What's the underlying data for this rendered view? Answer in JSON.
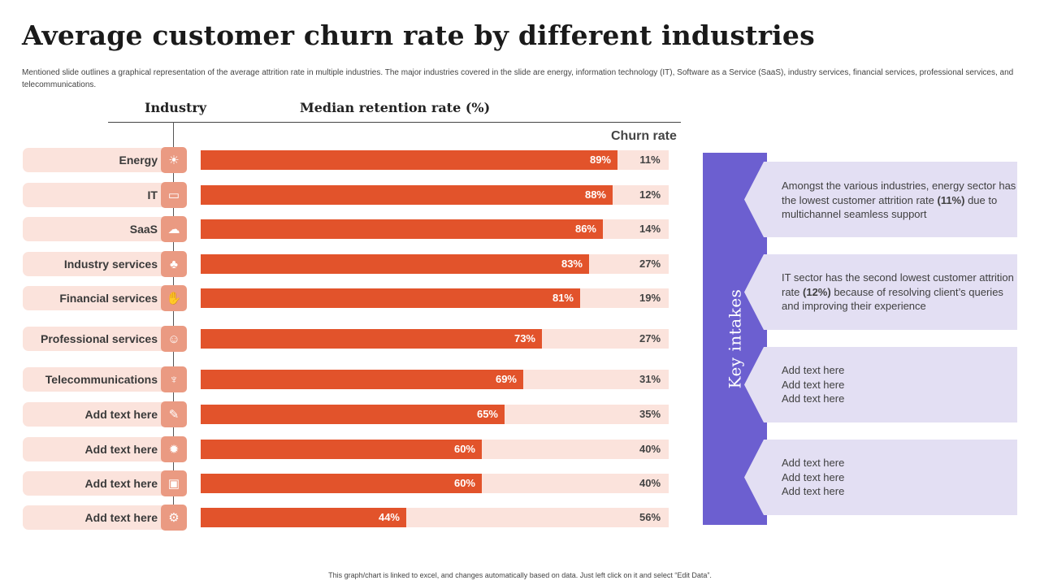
{
  "title": "Average customer churn rate by different industries",
  "subtitle": "Mentioned slide outlines a graphical representation of the average attrition rate in multiple industries. The major industries covered in the slide are energy, information technology (IT), Software as a Service (SaaS), industry services, financial services, professional services, and telecommunications.",
  "headers": {
    "industry": "Industry",
    "median": "Median retention rate (%)",
    "churn": "Churn rate"
  },
  "colors": {
    "bar": "#e2532b",
    "track": "#fbe3dc",
    "icon": "#ea9a82",
    "key_band": "#6c5fd0",
    "note_bg": "#e3dff3"
  },
  "chart_data": {
    "type": "bar",
    "orientation": "horizontal",
    "title": "Average customer churn rate by different industries",
    "xlabel": "Median retention rate (%)",
    "ylabel": "Industry",
    "xlim": [
      0,
      100
    ],
    "categories": [
      "Energy",
      "IT",
      "SaaS",
      "Industry services",
      "Financial services",
      "Professional services",
      "Telecommunications",
      "Add text here",
      "Add text here",
      "Add text here",
      "Add text here"
    ],
    "series": [
      {
        "name": "Median retention rate (%)",
        "values": [
          89,
          88,
          86,
          83,
          81,
          73,
          69,
          65,
          60,
          60,
          44
        ]
      },
      {
        "name": "Churn rate",
        "values": [
          11,
          12,
          14,
          27,
          19,
          27,
          31,
          35,
          40,
          40,
          56
        ]
      }
    ],
    "retention_labels": [
      "89%",
      "88%",
      "86%",
      "83%",
      "81%",
      "73%",
      "69%",
      "65%",
      "60%",
      "60%",
      "44%"
    ],
    "churn_labels": [
      "11%",
      "12%",
      "14%",
      "27%",
      "19%",
      "27%",
      "31%",
      "35%",
      "40%",
      "40%",
      "56%"
    ],
    "icons": [
      "lightbulb-icon",
      "monitor-icon",
      "cloud-network-icon",
      "org-chart-icon",
      "hand-coins-icon",
      "team-icon",
      "antenna-icon",
      "gear-tools-icon",
      "gear-icon",
      "screen-icon",
      "cog-cycle-icon"
    ],
    "icon_glyphs": [
      "☀",
      "▭",
      "☁",
      "♣",
      "✋",
      "☺",
      "♆",
      "✎",
      "✹",
      "▣",
      "⚙"
    ]
  },
  "key_intakes": {
    "title": "Key intakes",
    "notes": [
      {
        "before": "Amongst the various industries, energy sector has the lowest customer attrition rate ",
        "bold": "(11%)",
        "after": " due to multichannel seamless support"
      },
      {
        "before": "IT sector has the second lowest customer attrition rate ",
        "bold": "(12%)",
        "after": " because of resolving client’s queries and improving their experience"
      },
      {
        "lines": [
          "Add text here",
          "Add text here",
          "Add text here"
        ]
      },
      {
        "lines": [
          "Add text here",
          "Add text here",
          "Add text here"
        ]
      }
    ]
  },
  "footer": "This graph/chart is linked to excel, and changes automatically based on data. Just left click on it and select “Edit Data”."
}
